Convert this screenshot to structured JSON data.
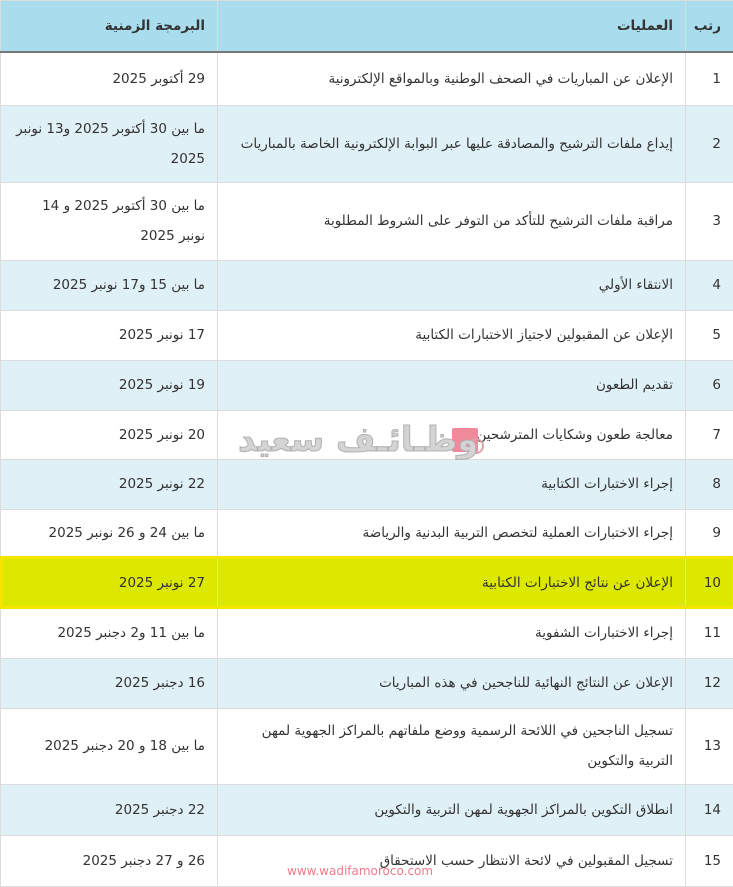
{
  "headers": {
    "rank": "رتب",
    "operations": "العمليات",
    "schedule": "البرمجة الزمنية"
  },
  "rows": [
    {
      "rank": "1",
      "op": "الإعلان عن المباريات في الصحف الوطنية وبالمواقع الإلكترونية",
      "date": "29 أكتوبر 2025"
    },
    {
      "rank": "2",
      "op": "إيداع ملفات الترشيح والمصادقة عليها عبر البوابة الإلكترونية الخاصة بالمباريات",
      "date": "ما بين 30 أكتوبر 2025 و13 نونبر 2025"
    },
    {
      "rank": "3",
      "op": "مراقبة ملفات الترشيح للتأكد من التوفر على الشروط المطلوبة",
      "date": "ما بين 30 أكتوبر 2025 و 14 نونبر 2025"
    },
    {
      "rank": "4",
      "op": "الانتقاء الأولي",
      "date": "ما بين 15 و17 نونبر 2025"
    },
    {
      "rank": "5",
      "op": "الإعلان عن المقبولين لاجتياز الاختبارات الكتابية",
      "date": "17 نونبر 2025"
    },
    {
      "rank": "6",
      "op": "تقديم الطعون",
      "date": "19 نونبر 2025"
    },
    {
      "rank": "7",
      "op": "معالجة طعون وشكايات المترشحين",
      "date": "20 نونبر 2025"
    },
    {
      "rank": "8",
      "op": "إجراء الاختبارات الكتابية",
      "date": "22 نونبر 2025"
    },
    {
      "rank": "9",
      "op": "إجراء الاختبارات العملية لتخصص التربية البدنية والرياضة",
      "date": "ما بين 24 و 26 نونبر 2025"
    },
    {
      "rank": "10",
      "op": "الإعلان عن نتائج الاختبارات الكتابية",
      "date": "27 نونبر 2025",
      "highlighted": true
    },
    {
      "rank": "11",
      "op": "إجراء الاختبارات الشفوية",
      "date": "ما بين 11 و2 دجنبر 2025"
    },
    {
      "rank": "12",
      "op": "الإعلان عن النتائج النهائية للناجحين في هذه المباريات",
      "date": "16 دجنبر 2025"
    },
    {
      "rank": "13",
      "op": "تسجيل الناجحين في اللائحة الرسمية ووضع ملفاتهم بالمراكز الجهوية لمهن التربية والتكوين",
      "date": "ما بين 18 و 20 دجنبر 2025"
    },
    {
      "rank": "14",
      "op": "انطلاق التكوين بالمراكز الجهوية لمهن التربية والتكوين",
      "date": "22 دجنبر 2025"
    },
    {
      "rank": "15",
      "op": "تسجيل المقبولين في لائحة الانتظار حسب الاستحقاق",
      "date": "26 و 27 دجنبر 2025"
    }
  ],
  "watermark": {
    "text": "وظـائـف سعيد",
    "url": "www.wadifamoroco.com"
  },
  "colors": {
    "header": "#a9dcec",
    "stripe": "#dff0f7",
    "highlight": "#dde800"
  }
}
